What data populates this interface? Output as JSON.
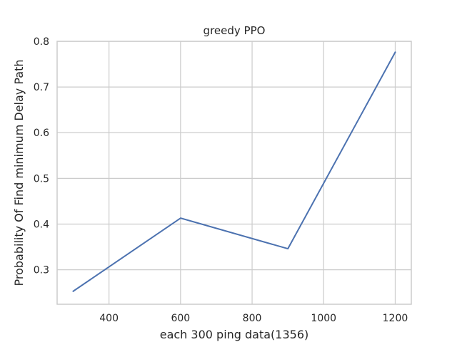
{
  "chart_data": {
    "type": "line",
    "title": "greedy PPO",
    "xlabel": "each 300 ping data(1356)",
    "ylabel": "Probability Of Find minimum Delay Path",
    "xlim": [
      255,
      1245
    ],
    "ylim": [
      0.2245,
      0.8
    ],
    "x_ticks": [
      400,
      600,
      800,
      1000,
      1200
    ],
    "y_ticks": [
      0.3,
      0.4,
      0.5,
      0.6,
      0.7,
      0.8
    ],
    "x_tick_labels": [
      "400",
      "600",
      "800",
      "1000",
      "1200"
    ],
    "y_tick_labels": [
      "0.3",
      "0.4",
      "0.5",
      "0.6",
      "0.7",
      "0.8"
    ],
    "grid": true,
    "series": [
      {
        "color": "#4c72b0",
        "x": [
          300,
          600,
          900,
          1200
        ],
        "y": [
          0.253,
          0.413,
          0.346,
          0.776
        ]
      }
    ]
  }
}
